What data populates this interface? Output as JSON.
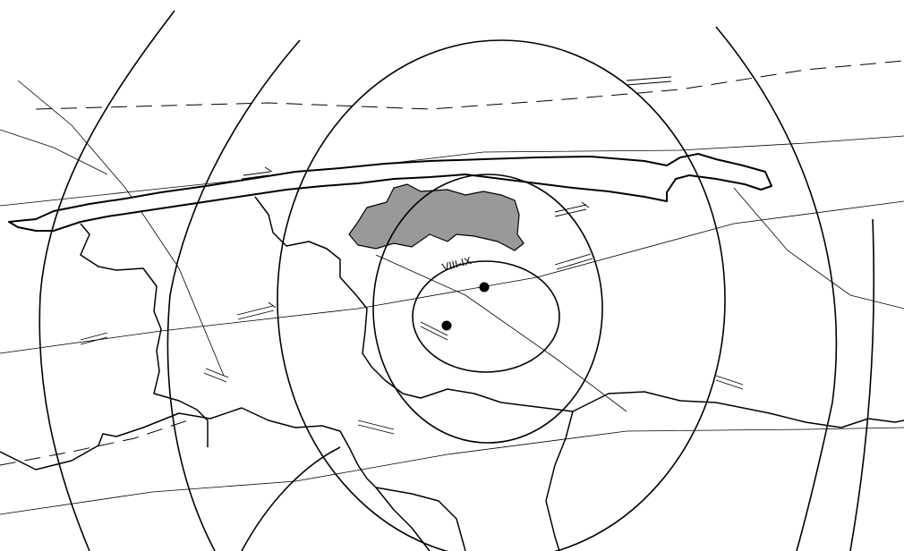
{
  "map": {
    "isoseismal_label": "VIII-IX",
    "colors": {
      "background": "#ffffff",
      "lines": "#000000",
      "shaded_area": "#999999"
    },
    "epicenter_count": 2
  }
}
